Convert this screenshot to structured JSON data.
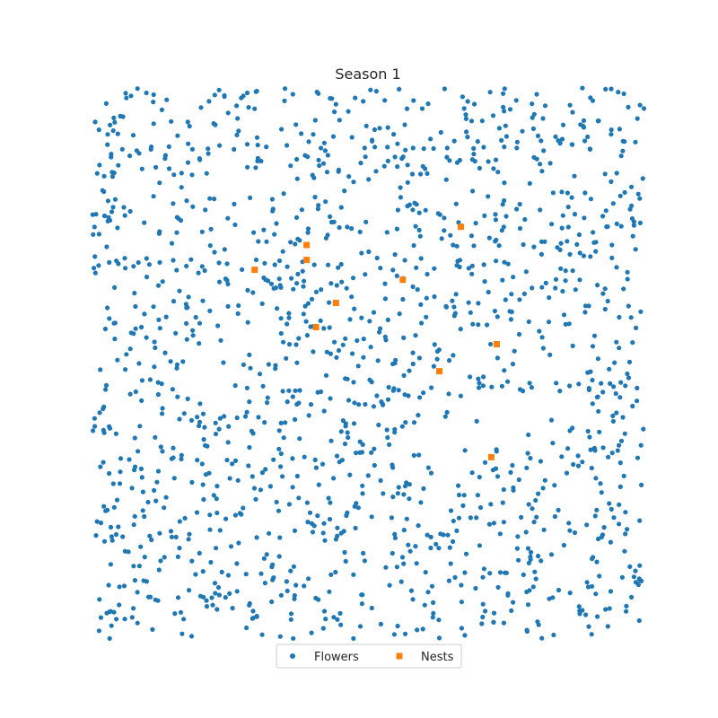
{
  "chart_data": {
    "type": "scatter",
    "title": "Season 1",
    "xlabel": "",
    "ylabel": "",
    "xlim": [
      0,
      100
    ],
    "ylim": [
      0,
      100
    ],
    "axes_visible": false,
    "grid": false,
    "legend_placement": "bottom-center",
    "series": [
      {
        "name": "Flowers",
        "marker": "circle",
        "color": "#1f77b4",
        "distribution": "approximately uniform random scatter over the full domain",
        "count": 1500
      },
      {
        "name": "Nests",
        "marker": "square",
        "color": "#ff7f0e",
        "points": [
          {
            "x": 66.8,
            "y": 74.8
          },
          {
            "x": 38.9,
            "y": 71.5
          },
          {
            "x": 38.9,
            "y": 68.8
          },
          {
            "x": 29.5,
            "y": 67.0
          },
          {
            "x": 56.3,
            "y": 65.2
          },
          {
            "x": 44.2,
            "y": 61.0
          },
          {
            "x": 40.6,
            "y": 56.6
          },
          {
            "x": 73.3,
            "y": 53.5
          },
          {
            "x": 62.9,
            "y": 48.6
          },
          {
            "x": 72.3,
            "y": 33.0
          }
        ]
      }
    ]
  }
}
